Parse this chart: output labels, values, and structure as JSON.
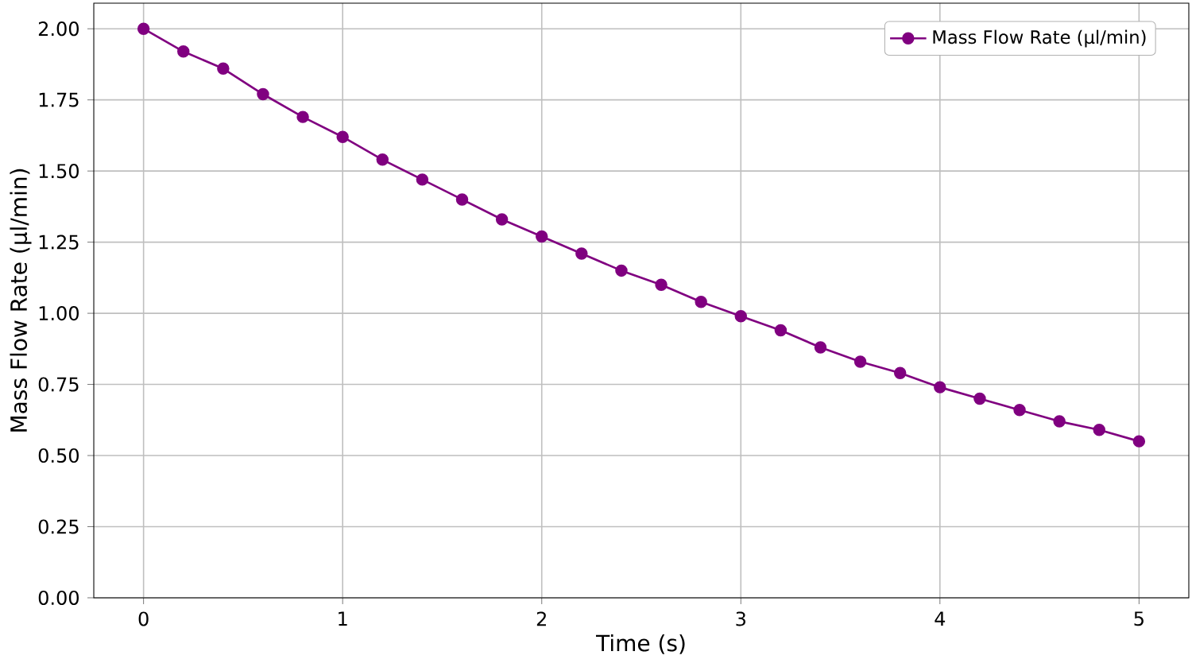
{
  "chart_data": {
    "type": "line",
    "xlabel": "Time (s)",
    "ylabel": "Mass Flow Rate (µl/min)",
    "x": [
      0,
      0.2,
      0.4,
      0.6,
      0.8,
      1.0,
      1.2,
      1.4,
      1.6,
      1.8,
      2.0,
      2.2,
      2.4,
      2.6,
      2.8,
      3.0,
      3.2,
      3.4,
      3.6,
      3.8,
      4.0,
      4.2,
      4.4,
      4.6,
      4.8,
      5.0
    ],
    "series": [
      {
        "name": "Mass Flow Rate (µl/min)",
        "color": "#800080",
        "values": [
          2.0,
          1.92,
          1.86,
          1.77,
          1.69,
          1.62,
          1.54,
          1.47,
          1.4,
          1.33,
          1.27,
          1.21,
          1.15,
          1.1,
          1.04,
          0.99,
          0.94,
          0.88,
          0.83,
          0.79,
          0.74,
          0.7,
          0.66,
          0.62,
          0.59,
          0.55
        ]
      }
    ],
    "xlim": [
      -0.25,
      5.25
    ],
    "ylim": [
      0,
      2.09
    ],
    "xticks": [
      0,
      1,
      2,
      3,
      4,
      5
    ],
    "yticks": [
      {
        "value": 0,
        "label": "0.00"
      },
      {
        "value": 0.25,
        "label": "0.25"
      },
      {
        "value": 0.5,
        "label": "0.50"
      },
      {
        "value": 0.75,
        "label": "0.75"
      },
      {
        "value": 1.0,
        "label": "1.00"
      },
      {
        "value": 1.25,
        "label": "1.25"
      },
      {
        "value": 1.5,
        "label": "1.50"
      },
      {
        "value": 1.75,
        "label": "1.75"
      },
      {
        "value": 2.0,
        "label": "2.00"
      }
    ],
    "grid": true,
    "legend": "top right",
    "marker": "circle",
    "line_style": "solid"
  }
}
